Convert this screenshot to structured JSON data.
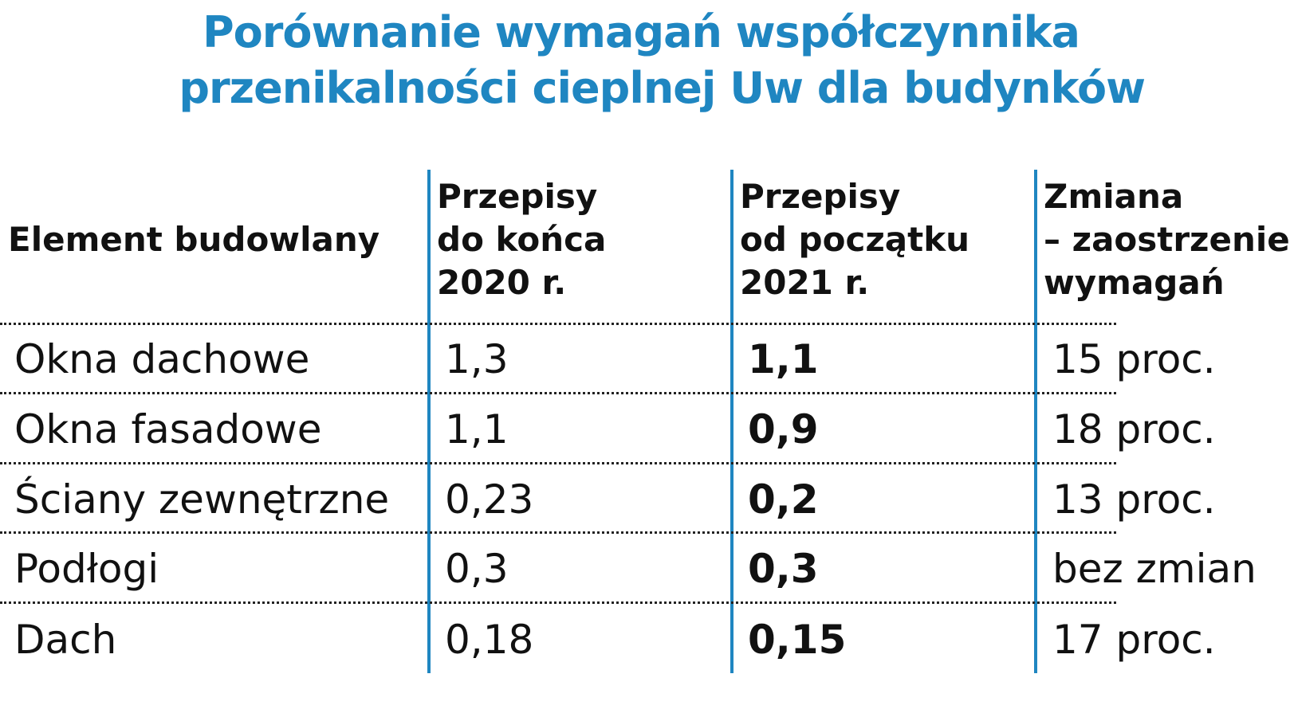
{
  "title": {
    "line1": "Porównanie wymagań współczynnika",
    "line2": "przenikalności cieplnej Uw dla budynków"
  },
  "table": {
    "headers": {
      "element": "Element budowlany",
      "old": [
        "Przepisy",
        "do końca",
        "2020 r."
      ],
      "new": [
        "Przepisy",
        "od początku",
        "2021 r."
      ],
      "change": [
        "Zmiana",
        "– zaostrzenie",
        "wymagań"
      ]
    },
    "rows": [
      {
        "element": "Okna dachowe",
        "old": "1,3",
        "new": "1,1",
        "change": "15 proc."
      },
      {
        "element": "Okna fasadowe",
        "old": "1,1",
        "new": "0,9",
        "change": "18 proc."
      },
      {
        "element": "Ściany zewnętrzne",
        "old": "0,23",
        "new": "0,2",
        "change": "13 proc."
      },
      {
        "element": "Podłogi",
        "old": "0,3",
        "new": "0,3",
        "change": "bez zmian"
      },
      {
        "element": "Dach",
        "old": "0,18",
        "new": "0,15",
        "change": "17 proc."
      }
    ]
  },
  "colors": {
    "accent": "#1f86c1",
    "text": "#111111",
    "divider": "#222222"
  }
}
